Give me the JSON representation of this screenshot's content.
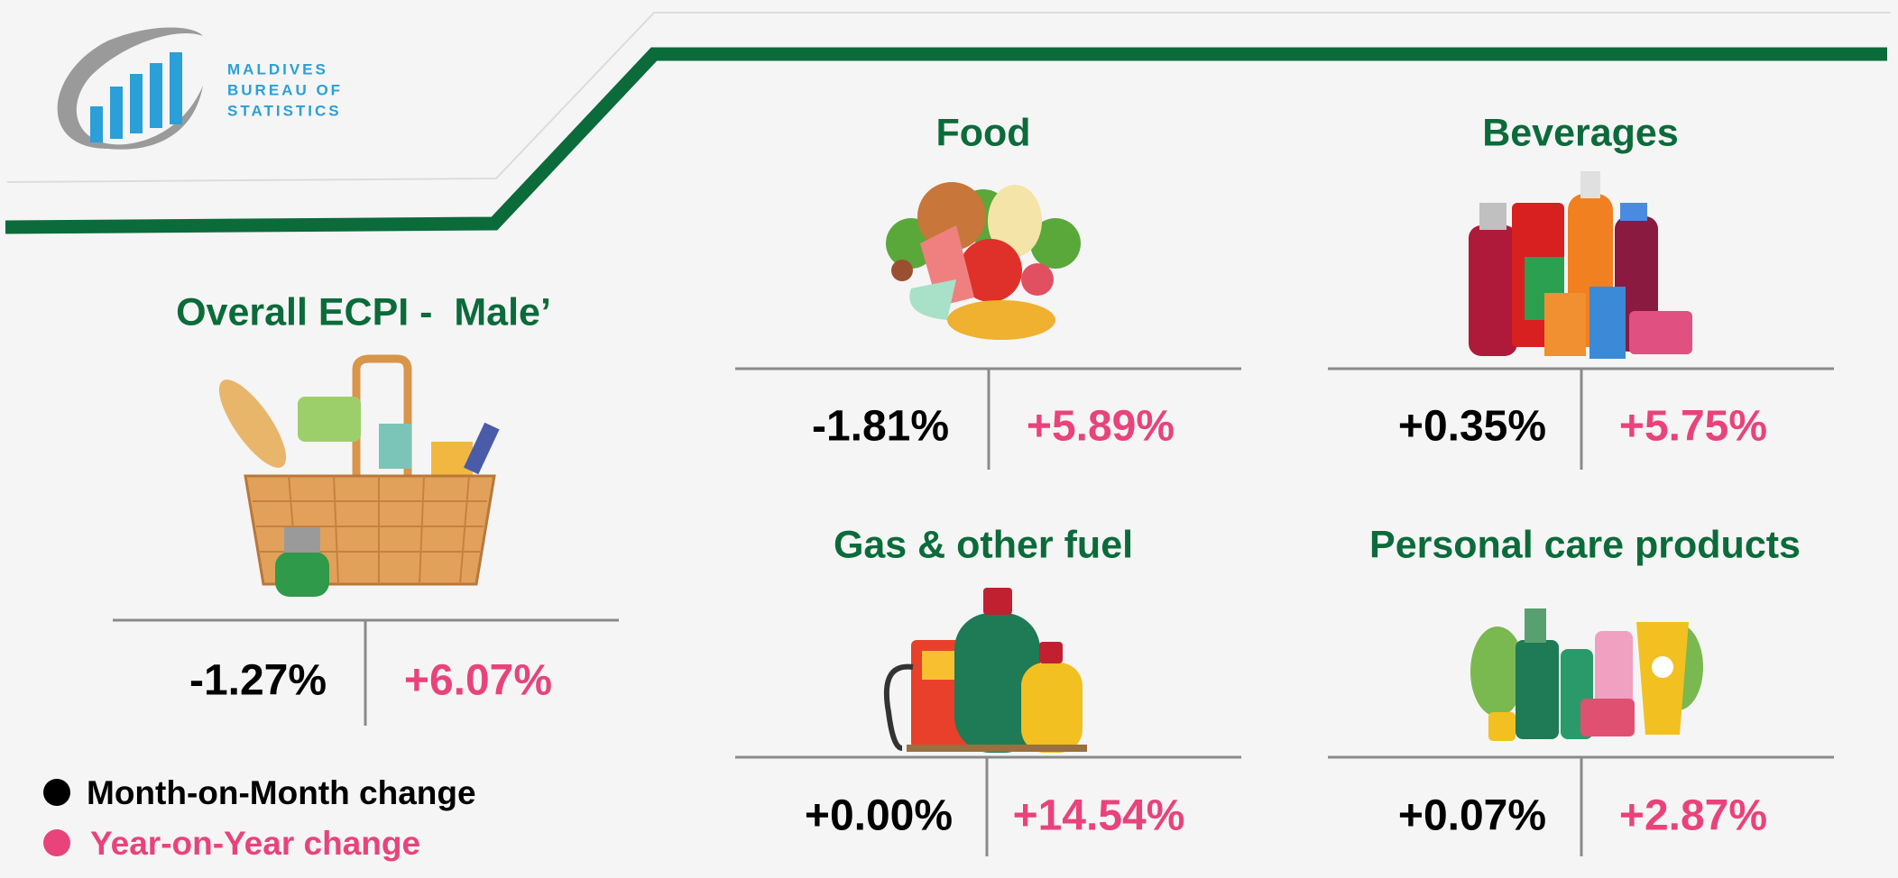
{
  "logo": {
    "lines": [
      "MALDIVES",
      "BUREAU OF",
      "STATISTICS"
    ]
  },
  "overall": {
    "title": "Overall ECPI -  Male’",
    "month_on_month": "-1.27%",
    "year_on_year": "+6.07%"
  },
  "categories": [
    {
      "title": "Food",
      "month_on_month": "-1.81%",
      "year_on_year": "+5.89%"
    },
    {
      "title": "Beverages",
      "month_on_month": "+0.35%",
      "year_on_year": "+5.75%"
    },
    {
      "title": "Gas & other fuel",
      "month_on_month": "+0.00%",
      "year_on_year": "+14.54%"
    },
    {
      "title": "Personal care products",
      "month_on_month": "+0.07%",
      "year_on_year": "+2.87%"
    }
  ],
  "legend": {
    "month_on_month": "Month-on-Month change",
    "year_on_year": "Year-on-Year change"
  }
}
